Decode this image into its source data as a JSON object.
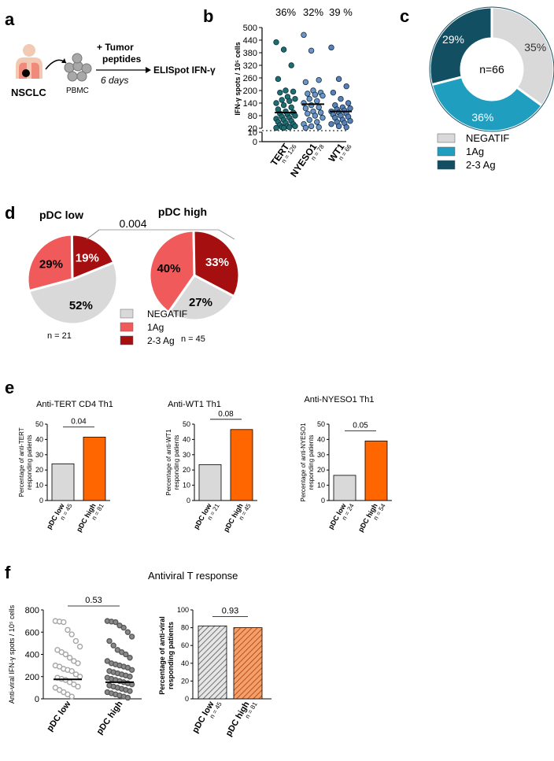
{
  "panels": {
    "a": "a",
    "b": "b",
    "c": "c",
    "d": "d",
    "e": "e",
    "f": "f"
  },
  "workflow": {
    "nsclc": "NSCLC",
    "pbmc": "PBMC",
    "step_title_line1": "+ Tumor",
    "step_title_line2": "peptides",
    "duration": "6 days",
    "readout": "ELISpot IFN-γ",
    "colors": {
      "body": "#f2c9b2",
      "lung": "#f08a7a",
      "tumor": "#000000",
      "cells": "#a8a8a8"
    }
  },
  "chart_data": [
    {
      "id": "b",
      "type": "scatter",
      "ylabel": "IFN-γ spots / 10⁵ cells",
      "y_ticks_upper": [
        20,
        80,
        140,
        200,
        260,
        320,
        380,
        440,
        500
      ],
      "y_ticks_lower": [
        0,
        10
      ],
      "ylim": [
        0,
        500
      ],
      "axis_break": [
        10,
        20
      ],
      "categories": [
        "TERT",
        "NYESO1",
        "WT1"
      ],
      "n_labels": [
        "n = 126",
        "n = 78",
        "n = 66"
      ],
      "percent_labels": [
        "36%",
        "32%",
        "39 %"
      ],
      "medians": [
        95,
        135,
        100
      ],
      "point_color": "#2a6f8f",
      "point_colors_by_group": [
        "#1f6e6e",
        "#6f95c8",
        "#5a7fb8"
      ],
      "points": [
        [
          430,
          395,
          320,
          255,
          200,
          195,
          190,
          170,
          160,
          155,
          150,
          140,
          130,
          120,
          110,
          100,
          95,
          90,
          85,
          80,
          75,
          70,
          65,
          60,
          55,
          50,
          45,
          40,
          35,
          30,
          30,
          25,
          25,
          22,
          22
        ],
        [
          465,
          390,
          250,
          240,
          200,
          190,
          185,
          180,
          175,
          160,
          150,
          140,
          130,
          120,
          115,
          100,
          95,
          90,
          80,
          70,
          60,
          50,
          40,
          30,
          25,
          22
        ],
        [
          405,
          255,
          220,
          190,
          160,
          140,
          130,
          120,
          115,
          110,
          105,
          100,
          95,
          90,
          85,
          80,
          75,
          70,
          60,
          55,
          50,
          45,
          40,
          30,
          25
        ]
      ]
    },
    {
      "id": "c",
      "type": "pie",
      "variant": "donut",
      "center_label": "n=66",
      "labels": [
        "NEGATIF",
        "1Ag",
        "2-3 Ag"
      ],
      "values": [
        35,
        36,
        29
      ],
      "value_labels": [
        "35%",
        "36%",
        "29%"
      ],
      "colors": [
        "#d9d9d9",
        "#1f9ec0",
        "#124f63"
      ]
    },
    {
      "id": "d",
      "type": "pie",
      "pvalue": "0.004",
      "legend": [
        "NEGATIF",
        "1Ag",
        "2-3 Ag"
      ],
      "colors": [
        "#d9d9d9",
        "#f15a5a",
        "#a50f0f"
      ],
      "charts": [
        {
          "title": "pDC low",
          "n_label": "n = 21",
          "values": [
            52,
            29,
            19
          ],
          "value_labels": [
            "52%",
            "29%",
            "19%"
          ]
        },
        {
          "title": "pDC high",
          "n_label": "n = 45",
          "values": [
            27,
            40,
            33
          ],
          "value_labels": [
            "27%",
            "40%",
            "33%"
          ]
        }
      ]
    },
    {
      "id": "e",
      "type": "bar",
      "charts": [
        {
          "title": "Anti-TERT CD4 Th1",
          "ylabel_line1": "Percentage of anti-TERT",
          "ylabel_line2": "responding patients",
          "categories": [
            "pDC low",
            "pDC high"
          ],
          "n_labels": [
            "n = 45",
            "n = 81"
          ],
          "values": [
            24,
            41.5
          ],
          "pvalue": "0.04",
          "ylim": [
            0,
            50
          ],
          "ticks": [
            0,
            10,
            20,
            30,
            40,
            50
          ]
        },
        {
          "title": "Anti-WT1 Th1",
          "ylabel_line1": "Percentage of anti-WT1",
          "ylabel_line2": "responding patients",
          "categories": [
            "pDC low",
            "pDC high"
          ],
          "n_labels": [
            "n = 21",
            "n = 45"
          ],
          "values": [
            23.5,
            46.5
          ],
          "pvalue": "0.08",
          "ylim": [
            0,
            50
          ],
          "ticks": [
            0,
            10,
            20,
            30,
            40,
            50
          ]
        },
        {
          "title": "Anti-NYESO1 Th1",
          "ylabel_line1": "Percentage of anti-NYESO1",
          "ylabel_line2": "responding patients",
          "categories": [
            "pDC low",
            "pDC high"
          ],
          "n_labels": [
            "n = 24",
            "n = 54"
          ],
          "values": [
            16.5,
            39
          ],
          "pvalue": "0.05",
          "ylim": [
            0,
            50
          ],
          "ticks": [
            0,
            10,
            20,
            30,
            40,
            50
          ]
        }
      ],
      "colors": [
        "#d9d9d9",
        "#ff6600"
      ]
    },
    {
      "id": "f1",
      "type": "scatter",
      "title": "Antiviral T response",
      "ylabel": "Anti-viral IFN-γ spots / 10⁵ cells",
      "categories": [
        "pDC low",
        "pDC high"
      ],
      "pvalue": "0.53",
      "ylim": [
        0,
        800
      ],
      "ticks": [
        0,
        200,
        400,
        600,
        800
      ],
      "medians": [
        175,
        150
      ],
      "point_colors": [
        "#a6a6a6",
        "#595959"
      ],
      "points": [
        [
          700,
          695,
          690,
          620,
          580,
          520,
          470,
          440,
          420,
          400,
          370,
          340,
          320,
          300,
          290,
          270,
          260,
          250,
          220,
          200,
          190,
          180,
          170,
          150,
          130,
          110,
          100,
          80,
          60,
          40,
          20
        ],
        [
          700,
          695,
          690,
          660,
          640,
          600,
          560,
          520,
          480,
          440,
          420,
          400,
          370,
          340,
          320,
          310,
          300,
          290,
          280,
          260,
          250,
          240,
          230,
          220,
          210,
          200,
          190,
          180,
          170,
          160,
          150,
          140,
          130,
          120,
          110,
          100,
          90,
          80,
          70,
          60,
          50,
          40,
          30,
          20,
          10
        ]
      ]
    },
    {
      "id": "f2",
      "type": "bar",
      "ylabel_line1": "Percentage of anti-viral",
      "ylabel_line2": "responding patients",
      "categories": [
        "pDC low",
        "pDC high"
      ],
      "n_labels": [
        "n = 45",
        "n = 81"
      ],
      "values": [
        82,
        80
      ],
      "pvalue": "0.93",
      "ylim": [
        0,
        100
      ],
      "ticks": [
        0,
        20,
        40,
        60,
        80,
        100
      ],
      "colors": [
        "#cfcfcf",
        "#d95a1a"
      ]
    }
  ]
}
